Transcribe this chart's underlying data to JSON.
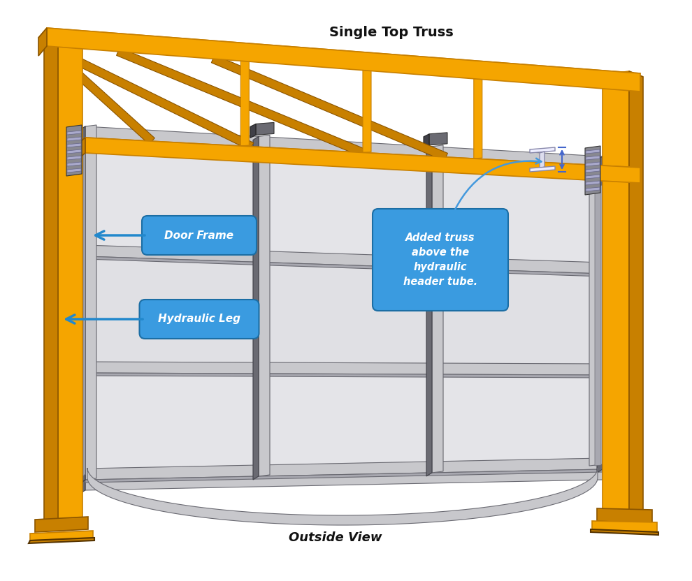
{
  "background_color": "#ffffff",
  "orange": "#F5A500",
  "orange_top": "#FFCC55",
  "orange_dark": "#C88000",
  "orange_shadow": "#8B5500",
  "steel_light": "#C8C8CC",
  "steel_mid": "#A8A8B0",
  "steel_dark": "#6A6A72",
  "steel_shadow": "#404048",
  "label_bg": "#3A9BE0",
  "label_edge": "#1C6EA4",
  "label_text": "#ffffff",
  "arrow_color": "#2288CC",
  "text_black": "#111111",
  "label_single_top_truss": "Single Top Truss",
  "label_door_frame": "Door Frame",
  "label_hydraulic_leg": "Hydraulic Leg",
  "label_outside_view": "Outside View",
  "label_added_truss": "Added truss\nabove the\nhydraulic\nheader tube.",
  "fig_width": 9.9,
  "fig_height": 8.32
}
